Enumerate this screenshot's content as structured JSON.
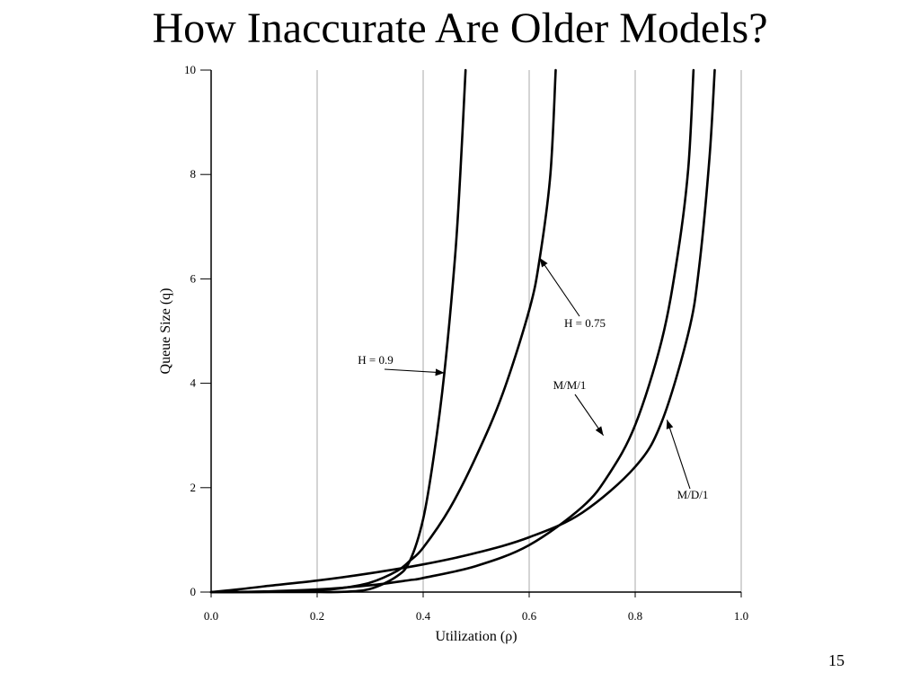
{
  "slide": {
    "title": "How Inaccurate Are Older Models?",
    "page_number": "15"
  },
  "chart_data": {
    "type": "line",
    "title": "",
    "xlabel": "Utilization (ρ)",
    "ylabel": "Queue Size (q)",
    "xlim": [
      0.0,
      1.0
    ],
    "ylim": [
      0,
      10
    ],
    "x_ticks": [
      "0.0",
      "0.2",
      "0.4",
      "0.6",
      "0.8",
      "1.0"
    ],
    "y_ticks": [
      "0",
      "2",
      "4",
      "6",
      "8",
      "10"
    ],
    "grid": "vertical lines at x = 0.2, 0.4, 0.6, 0.8, 1.0",
    "legend": "none; series identified by arrow annotations",
    "series": [
      {
        "name": "H = 0.9",
        "x": [
          0.0,
          0.1,
          0.2,
          0.25,
          0.3,
          0.35,
          0.375,
          0.4,
          0.42,
          0.44,
          0.46,
          0.47,
          0.48
        ],
        "y": [
          0.0,
          0.0,
          0.0,
          0.005,
          0.06,
          0.3,
          0.6,
          1.4,
          2.6,
          4.2,
          6.4,
          8.0,
          10.0
        ]
      },
      {
        "name": "H = 0.75",
        "x": [
          0.0,
          0.1,
          0.2,
          0.25,
          0.3,
          0.35,
          0.375,
          0.4,
          0.45,
          0.5,
          0.55,
          0.6,
          0.62,
          0.64,
          0.65
        ],
        "y": [
          0.0,
          0.002,
          0.03,
          0.08,
          0.18,
          0.4,
          0.6,
          0.85,
          1.6,
          2.6,
          3.8,
          5.4,
          6.4,
          8.0,
          10.0
        ]
      },
      {
        "name": "M/M/1",
        "x": [
          0.0,
          0.05,
          0.1,
          0.2,
          0.3,
          0.375,
          0.4,
          0.5,
          0.6,
          0.7,
          0.75,
          0.8,
          0.85,
          0.88,
          0.9,
          0.91
        ],
        "y": [
          0.0,
          0.0026,
          0.011,
          0.05,
          0.13,
          0.23,
          0.27,
          0.5,
          0.9,
          1.63,
          2.25,
          3.2,
          4.82,
          6.45,
          8.1,
          10.0
        ]
      },
      {
        "name": "M/D/1",
        "x": [
          0.0,
          0.05,
          0.1,
          0.2,
          0.3,
          0.4,
          0.5,
          0.6,
          0.7,
          0.8,
          0.85,
          0.9,
          0.92,
          0.94,
          0.95
        ],
        "y": [
          0.0,
          0.05,
          0.11,
          0.22,
          0.36,
          0.53,
          0.75,
          1.05,
          1.52,
          2.4,
          3.26,
          4.95,
          6.17,
          8.3,
          10.0
        ]
      }
    ],
    "annotations": [
      {
        "text": "H = 0.9",
        "points_to": {
          "x": 0.44,
          "y": 4.2
        }
      },
      {
        "text": "H = 0.75",
        "points_to": {
          "x": 0.62,
          "y": 6.4
        }
      },
      {
        "text": "M/M/1",
        "points_to": {
          "x": 0.74,
          "y": 3.0
        }
      },
      {
        "text": "M/D/1",
        "points_to": {
          "x": 0.86,
          "y": 3.3
        }
      }
    ]
  }
}
